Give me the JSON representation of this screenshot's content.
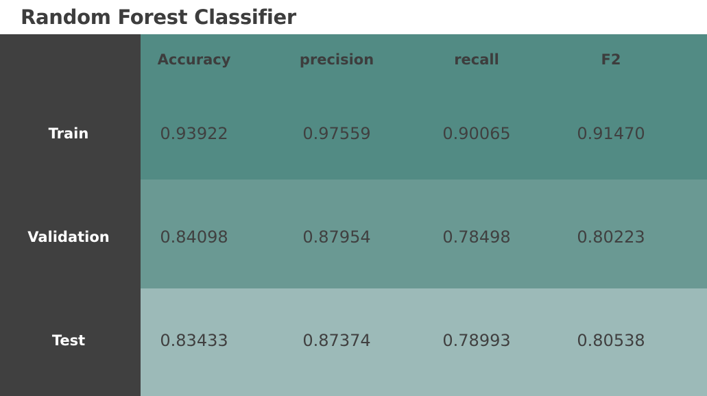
{
  "title": "Random Forest Classifier",
  "colors": {
    "label_column": "#404040",
    "train_row": "#528b84",
    "validation_row": "#6a9993",
    "test_row": "#9cbab8",
    "title_text": "#3d3d3d"
  },
  "table": {
    "columns": [
      "Accuracy",
      "precision",
      "recall",
      "F2"
    ],
    "rows": [
      {
        "label": "Train",
        "values": [
          "0.93922",
          "0.97559",
          "0.90065",
          "0.91470"
        ]
      },
      {
        "label": "Validation",
        "values": [
          "0.84098",
          "0.87954",
          "0.78498",
          "0.80223"
        ]
      },
      {
        "label": "Test",
        "values": [
          "0.83433",
          "0.87374",
          "0.78993",
          "0.80538"
        ]
      }
    ]
  }
}
